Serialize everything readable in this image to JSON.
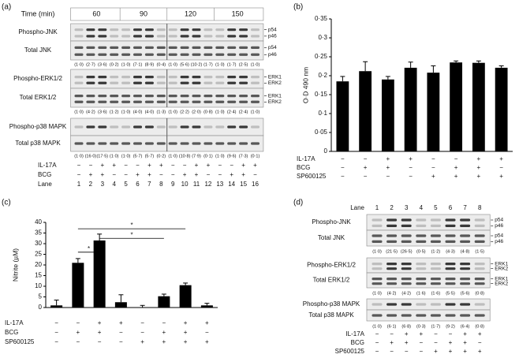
{
  "panel_labels": [
    "(a)",
    "(b)",
    "(c)",
    "(d)"
  ],
  "blot_a": {
    "time_label": "Time (min)",
    "times": [
      "60",
      "90",
      "120",
      "150"
    ],
    "rows": [
      "Phospho-JNK",
      "Total JNK",
      "Phospho-ERK1/2",
      "Total ERK1/2",
      "Phospho-p38 MAPK",
      "Total p38 MAPK"
    ],
    "band_labels": [
      "p54",
      "p46",
      "p54",
      "p46",
      "ERK1",
      "ERK2",
      "ERK1",
      "ERK2"
    ],
    "quantification": [
      [
        "(1·0)",
        "(2·7)",
        "(3·6)",
        "(0·2)",
        "(1·0)",
        "(7·1)",
        "(8·9)",
        "(0·4)",
        "(1·0)",
        "(5·6)",
        "(10·2)",
        "(1·7)",
        "(1·0)",
        "(1·7)",
        "(2·5)",
        "(1·0)"
      ],
      [
        "(1·0)",
        "(4·2)",
        "(3·6)",
        "(1·2)",
        "(1·0)",
        "(4·0)",
        "(4·0)",
        "(1·3)",
        "(1·0)",
        "(2·2)",
        "(2·0)",
        "(0·8)",
        "(1·0)",
        "(2·4)",
        "(2·4)",
        "(1·0)"
      ],
      [
        "(1·0)",
        "(16·0)",
        "(17·5)",
        "(1·0)",
        "(1·0)",
        "(5·7)",
        "(5·7)",
        "(0·2)",
        "(1·0)",
        "(10·8)",
        "(7·9)",
        "(0·1)",
        "(1·0)",
        "(9·6)",
        "(7·3)",
        "(0·1)"
      ]
    ],
    "treatments": [
      {
        "name": "IL-17A",
        "signs": [
          "−",
          "−",
          "+",
          "+",
          "−",
          "−",
          "+",
          "+",
          "−",
          "−",
          "+",
          "+",
          "−",
          "−",
          "+",
          "+"
        ]
      },
      {
        "name": "BCG",
        "signs": [
          "−",
          "+",
          "+",
          "−",
          "−",
          "+",
          "+",
          "−",
          "−",
          "+",
          "+",
          "−",
          "−",
          "+",
          "+",
          "−"
        ]
      }
    ],
    "lane_label": "Lane",
    "lanes": [
      "1",
      "2",
      "3",
      "4",
      "5",
      "6",
      "7",
      "8",
      "9",
      "10",
      "11",
      "12",
      "13",
      "14",
      "15",
      "16"
    ]
  },
  "chart_data": [
    {
      "type": "bar",
      "ylabel": "O·D 490 nm",
      "ylim": [
        0,
        0.35
      ],
      "yticks": [
        0,
        {
          "value": 0.05,
          "label": "0·05"
        },
        {
          "value": 0.1,
          "label": "0·1"
        },
        {
          "value": 0.15,
          "label": "0·15"
        },
        {
          "value": 0.2,
          "label": "0·2"
        },
        {
          "value": 0.25,
          "label": "0·25"
        },
        {
          "value": 0.3,
          "label": "0·3"
        },
        {
          "value": 0.35,
          "label": "0·35"
        }
      ],
      "values": [
        0.185,
        0.212,
        0.19,
        0.221,
        0.208,
        0.235,
        0.234,
        0.221
      ],
      "errors": [
        0.013,
        0.025,
        0.008,
        0.015,
        0.018,
        0.004,
        0.005,
        0.005
      ],
      "color": "#000000",
      "treatments": [
        {
          "name": "IL-17A",
          "signs": [
            "−",
            "−",
            "+",
            "+",
            "−",
            "−",
            "+",
            "+"
          ]
        },
        {
          "name": "BCG",
          "signs": [
            "−",
            "+",
            "+",
            "−",
            "−",
            "+",
            "+",
            "−"
          ]
        },
        {
          "name": "SP600125",
          "signs": [
            "−",
            "−",
            "−",
            "−",
            "+",
            "+",
            "+",
            "+"
          ]
        }
      ]
    },
    {
      "type": "bar",
      "ylabel": "Nitrite (µM)",
      "ylim": [
        0,
        40
      ],
      "yticks": [
        0,
        5,
        10,
        15,
        20,
        25,
        30,
        35,
        40
      ],
      "values": [
        1,
        21,
        31.5,
        2.5,
        0,
        5.3,
        10.5,
        1
      ],
      "errors": [
        2.5,
        2,
        3,
        3.5,
        1,
        1,
        1,
        1
      ],
      "color": "#000000",
      "annotations": [
        "*",
        "*",
        "*"
      ],
      "treatments": [
        {
          "name": "IL-17A",
          "signs": [
            "−",
            "−",
            "+",
            "+",
            "−",
            "−",
            "+",
            "+"
          ]
        },
        {
          "name": "BCG",
          "signs": [
            "−",
            "+",
            "+",
            "−",
            "−",
            "+",
            "+",
            "−"
          ]
        },
        {
          "name": "SP600125",
          "signs": [
            "−",
            "−",
            "−",
            "−",
            "+",
            "+",
            "+",
            "+"
          ]
        }
      ]
    }
  ],
  "blot_d": {
    "lane_label": "Lane",
    "lanes": [
      "1",
      "2",
      "3",
      "4",
      "5",
      "6",
      "7",
      "8"
    ],
    "rows": [
      "Phospho-JNK",
      "Total JNK",
      "Phospho-ERK1/2",
      "Total ERK1/2",
      "Phospho-p38 MAPK",
      "Total p38 MAPK"
    ],
    "band_labels": [
      "p54",
      "p46",
      "p54",
      "p46",
      "ERK1",
      "ERK2",
      "ERK1",
      "ERK2"
    ],
    "quantification": [
      [
        "(1·0)",
        "(21·5)",
        "(26·5)",
        "(0·5)",
        "(1·2)",
        "(4·3)",
        "(4·8)",
        "(1·5)"
      ],
      [
        "(1·0)",
        "(4·2)",
        "(4·2)",
        "(1·6)",
        "(1·6)",
        "(5·5)",
        "(5·6)",
        "(0·8)"
      ],
      [
        "(1·0)",
        "(6·1)",
        "(6·8)",
        "(0·3)",
        "(1·7)",
        "(9·2)",
        "(6·4)",
        "(0·8)"
      ]
    ],
    "treatments": [
      {
        "name": "IL-17A",
        "signs": [
          "−",
          "−",
          "+",
          "+",
          "−",
          "−",
          "+",
          "+"
        ]
      },
      {
        "name": "BCG",
        "signs": [
          "−",
          "+",
          "+",
          "−",
          "−",
          "+",
          "+",
          "−"
        ]
      },
      {
        "name": "SP600125",
        "signs": [
          "−",
          "−",
          "−",
          "−",
          "+",
          "+",
          "+",
          "+"
        ]
      }
    ]
  }
}
